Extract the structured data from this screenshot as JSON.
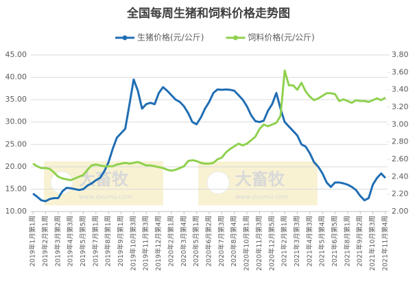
{
  "chart_data": {
    "type": "line",
    "title": "全国每周生猪和饲料价格走势图",
    "watermark": {
      "brand": "大畜牧",
      "url": "www.dxumu.com"
    },
    "categories": [
      "2019年1月第1周",
      null,
      null,
      "2019年2月第1周",
      null,
      null,
      "2019年3月第2周",
      null,
      null,
      "2019年4月第3周",
      null,
      null,
      "2019年5月第5周",
      null,
      null,
      "2019年7月第1周",
      null,
      null,
      "2019年8月第1周",
      null,
      null,
      "2019年9月第1周",
      null,
      null,
      "2019年10月第3周",
      null,
      null,
      "2019年11月第3周",
      null,
      null,
      "2019年12月第4周",
      null,
      null,
      "2020年2月第1周",
      null,
      null,
      "2020年3月第4周",
      null,
      null,
      "2020年5月第1周",
      null,
      null,
      "2020年6月第2周",
      null,
      null,
      "2020年7月第3周",
      null,
      null,
      "2020年8月第4周",
      null,
      null,
      "2020年10月第1周",
      null,
      null,
      "2020年11月第3周",
      null,
      null,
      "2020年12月第5周",
      null,
      null,
      "2021年2月第1周",
      null,
      null,
      "2021年3月第3周",
      null,
      null,
      "2021年4月第3周",
      null,
      null,
      "2021年5月第4周",
      null,
      null,
      "2021年6月第5周",
      null,
      null,
      "2021年8月第1周",
      null,
      null,
      "2021年9月第2周",
      null,
      null,
      "2021年10月第3周",
      null,
      null,
      "2021年11月第4周"
    ],
    "series": [
      {
        "name": "生猪价格(元/公斤)",
        "color": "#1f6db3",
        "axis": "y",
        "values": [
          14.0,
          13.3,
          12.5,
          12.3,
          12.8,
          13.0,
          13.0,
          14.5,
          15.3,
          15.2,
          15.0,
          14.8,
          15.0,
          15.8,
          16.3,
          17.0,
          17.5,
          19.0,
          21.0,
          24.0,
          26.5,
          27.5,
          28.5,
          34.0,
          39.5,
          37.0,
          33.0,
          34.0,
          34.3,
          34.0,
          36.5,
          37.8,
          37.0,
          36.0,
          35.0,
          34.5,
          33.5,
          32.0,
          30.0,
          29.5,
          31.0,
          33.0,
          34.5,
          36.5,
          37.3,
          37.2,
          37.3,
          37.2,
          37.0,
          36.0,
          35.0,
          33.5,
          31.5,
          30.2,
          30.0,
          30.3,
          32.5,
          34.0,
          36.5,
          33.0,
          30.0,
          29.0,
          28.0,
          27.0,
          25.0,
          24.5,
          23.0,
          21.0,
          20.0,
          18.5,
          16.5,
          15.5,
          16.5,
          16.5,
          16.3,
          16.0,
          15.5,
          14.8,
          13.5,
          12.5,
          13.0,
          16.0,
          17.5,
          18.5,
          17.5
        ]
      },
      {
        "name": "饲料价格(元/公斤)",
        "color": "#8fd14f",
        "axis": "y2",
        "values": [
          2.55,
          2.52,
          2.5,
          2.5,
          2.49,
          2.45,
          2.4,
          2.38,
          2.37,
          2.36,
          2.38,
          2.4,
          2.42,
          2.48,
          2.53,
          2.54,
          2.53,
          2.52,
          2.52,
          2.52,
          2.54,
          2.55,
          2.56,
          2.55,
          2.56,
          2.57,
          2.55,
          2.53,
          2.53,
          2.52,
          2.51,
          2.5,
          2.48,
          2.47,
          2.48,
          2.5,
          2.52,
          2.58,
          2.59,
          2.58,
          2.56,
          2.55,
          2.55,
          2.56,
          2.6,
          2.62,
          2.68,
          2.72,
          2.75,
          2.78,
          2.76,
          2.78,
          2.82,
          2.86,
          2.95,
          3.0,
          2.98,
          3.0,
          3.02,
          3.1,
          3.62,
          3.45,
          3.45,
          3.4,
          3.48,
          3.38,
          3.32,
          3.28,
          3.3,
          3.33,
          3.36,
          3.36,
          3.35,
          3.27,
          3.29,
          3.27,
          3.25,
          3.28,
          3.27,
          3.27,
          3.26,
          3.28,
          3.3,
          3.28,
          3.31
        ]
      }
    ],
    "ylim": [
      10,
      45
    ],
    "yticks": [
      {
        "value": 10,
        "label": "10.00"
      },
      {
        "value": 15,
        "label": "15.00"
      },
      {
        "value": 20,
        "label": "20.00"
      },
      {
        "value": 25,
        "label": "25.00"
      },
      {
        "value": 30,
        "label": "30.00"
      },
      {
        "value": 35,
        "label": "35.00"
      },
      {
        "value": 40,
        "label": "40.00"
      },
      {
        "value": 45,
        "label": "45.00"
      }
    ],
    "y2lim": [
      2.0,
      3.8
    ],
    "y2ticks": [
      {
        "value": 2.0,
        "label": "2.00"
      },
      {
        "value": 2.2,
        "label": "2.20"
      },
      {
        "value": 2.4,
        "label": "2.40"
      },
      {
        "value": 2.6,
        "label": "2.60"
      },
      {
        "value": 2.8,
        "label": "2.80"
      },
      {
        "value": 3.0,
        "label": "3.00"
      },
      {
        "value": 3.2,
        "label": "3.20"
      },
      {
        "value": 3.4,
        "label": "3.40"
      },
      {
        "value": 3.6,
        "label": "3.60"
      },
      {
        "value": 3.8,
        "label": "3.80"
      }
    ],
    "grid": true,
    "legend": "top"
  }
}
